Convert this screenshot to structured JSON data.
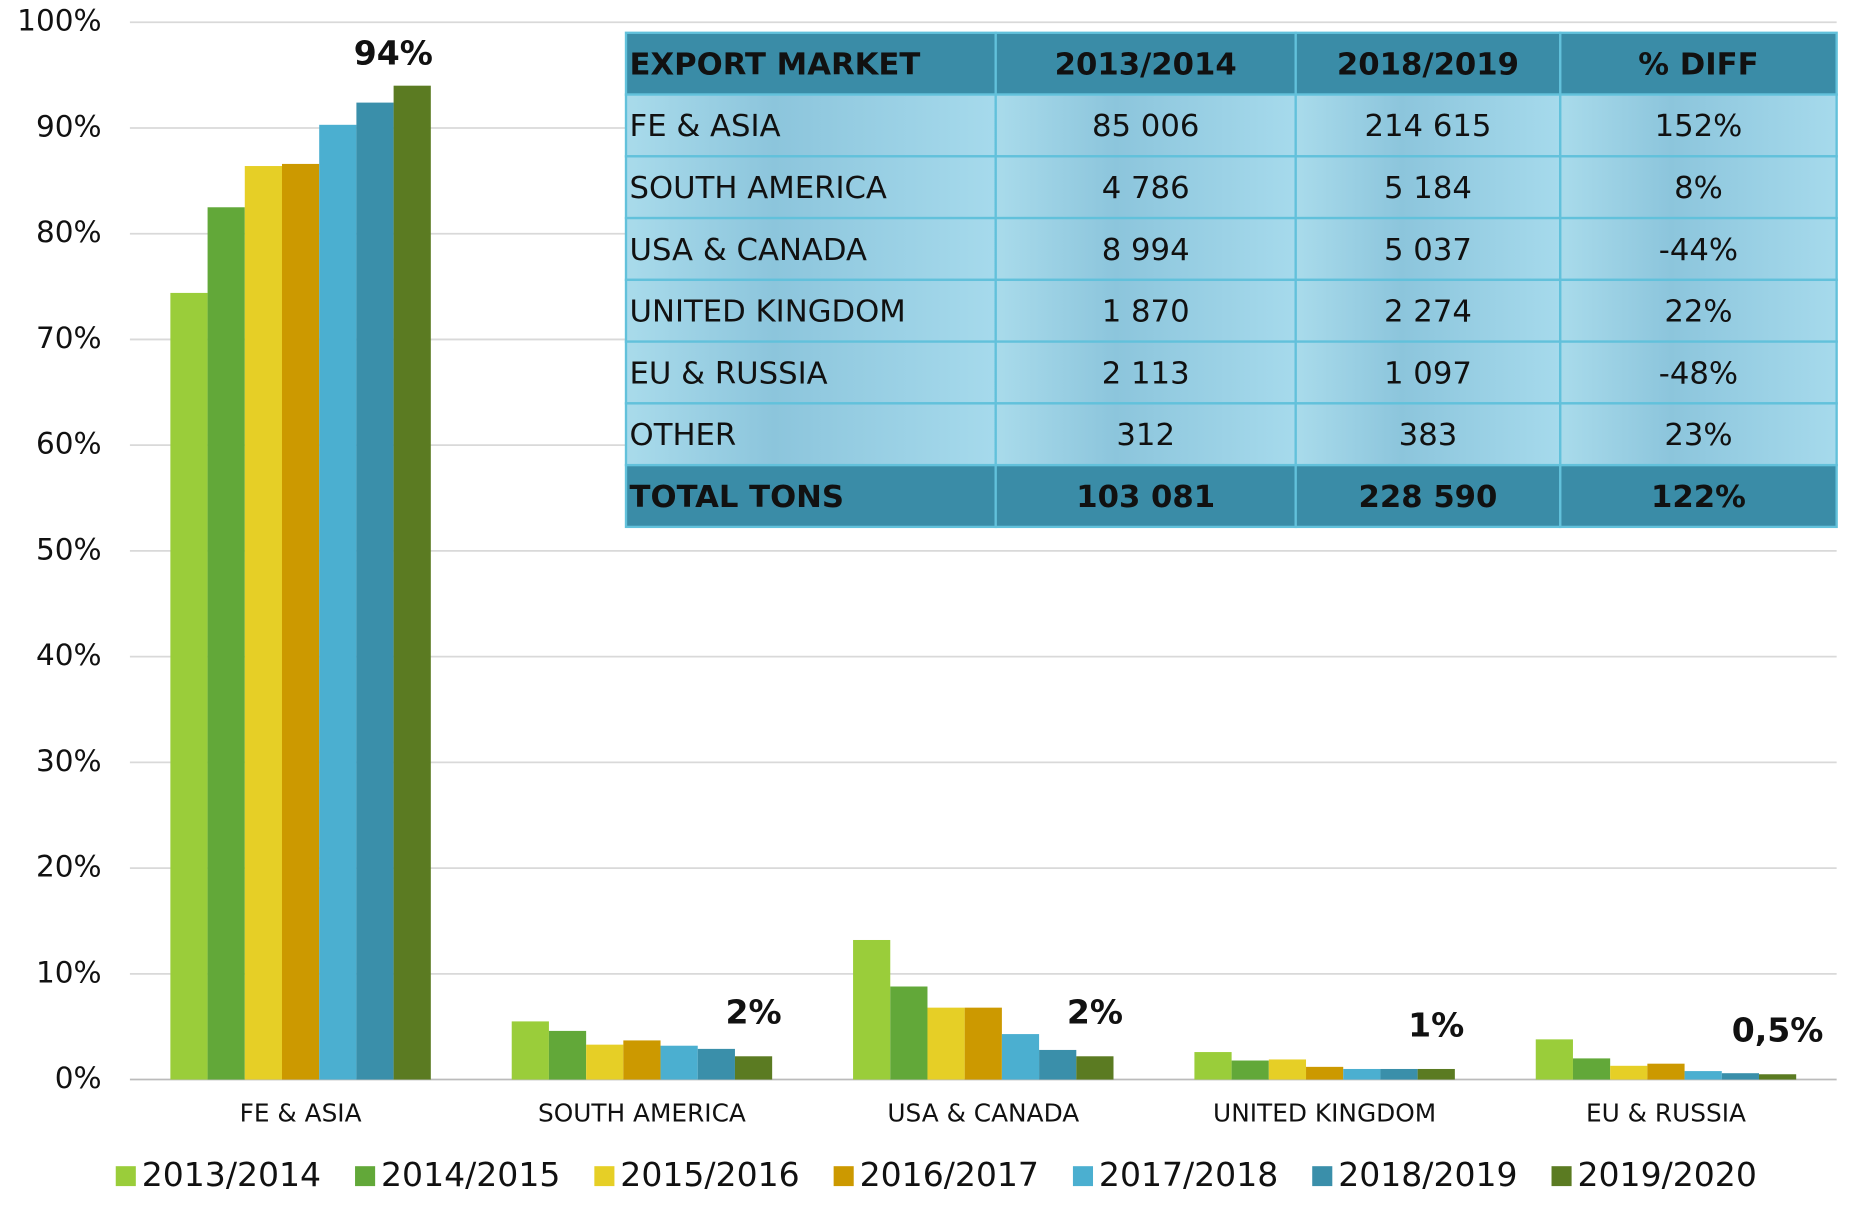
{
  "chart_data": {
    "type": "bar",
    "categories": [
      "FE & ASIA",
      "SOUTH AMERICA",
      "USA & CANADA",
      "UNITED KINGDOM",
      "EU & RUSSIA"
    ],
    "series": [
      {
        "name": "2013/2014",
        "color": "#9acd3a",
        "values": [
          74.4,
          5.5,
          13.2,
          2.6,
          3.8
        ]
      },
      {
        "name": "2014/2015",
        "color": "#62a839",
        "values": [
          82.5,
          4.6,
          8.8,
          1.8,
          2.0
        ]
      },
      {
        "name": "2015/2016",
        "color": "#e6cf26",
        "values": [
          86.4,
          3.3,
          6.8,
          1.9,
          1.3
        ]
      },
      {
        "name": "2016/2017",
        "color": "#cc9900",
        "values": [
          86.6,
          3.7,
          6.8,
          1.2,
          1.5
        ]
      },
      {
        "name": "2017/2018",
        "color": "#4bafd0",
        "values": [
          90.3,
          3.2,
          4.3,
          1.0,
          0.8
        ]
      },
      {
        "name": "2018/2019",
        "color": "#3a8faa",
        "values": [
          92.4,
          2.9,
          2.8,
          1.0,
          0.6
        ]
      },
      {
        "name": "2019/2020",
        "color": "#5b7b22",
        "values": [
          94,
          2.2,
          2.2,
          1.0,
          0.5
        ],
        "value_labels": [
          "94%",
          "2%",
          "2%",
          "1%",
          "0,5%"
        ]
      }
    ],
    "ylim": [
      0,
      100
    ],
    "yticks": [
      {
        "value": 0,
        "label": "0%"
      },
      {
        "value": 10,
        "label": "10%"
      },
      {
        "value": 20,
        "label": "20%"
      },
      {
        "value": 30,
        "label": "30%"
      },
      {
        "value": 40,
        "label": "40%"
      },
      {
        "value": 50,
        "label": "50%"
      },
      {
        "value": 60,
        "label": "60%"
      },
      {
        "value": 70,
        "label": "70%"
      },
      {
        "value": 80,
        "label": "80%"
      },
      {
        "value": 90,
        "label": "90%"
      },
      {
        "value": 100,
        "label": "100%"
      }
    ],
    "grid": true,
    "legend": "bottom"
  },
  "table": {
    "header": [
      "EXPORT MARKET",
      "2013/2014",
      "2018/2019",
      "% DIFF"
    ],
    "rows": [
      [
        "FE & ASIA",
        "85 006",
        "214 615",
        "152%"
      ],
      [
        "SOUTH AMERICA",
        "4 786",
        "5 184",
        "8%"
      ],
      [
        "USA & CANADA",
        "8 994",
        "5 037",
        "-44%"
      ],
      [
        "UNITED KINGDOM",
        "1 870",
        "2 274",
        "22%"
      ],
      [
        "EU & RUSSIA",
        "2 113",
        "1 097",
        "-48%"
      ],
      [
        "OTHER",
        "312",
        "383",
        "23%"
      ],
      [
        "TOTAL TONS",
        "103 081",
        "228 590",
        "122%"
      ]
    ]
  }
}
